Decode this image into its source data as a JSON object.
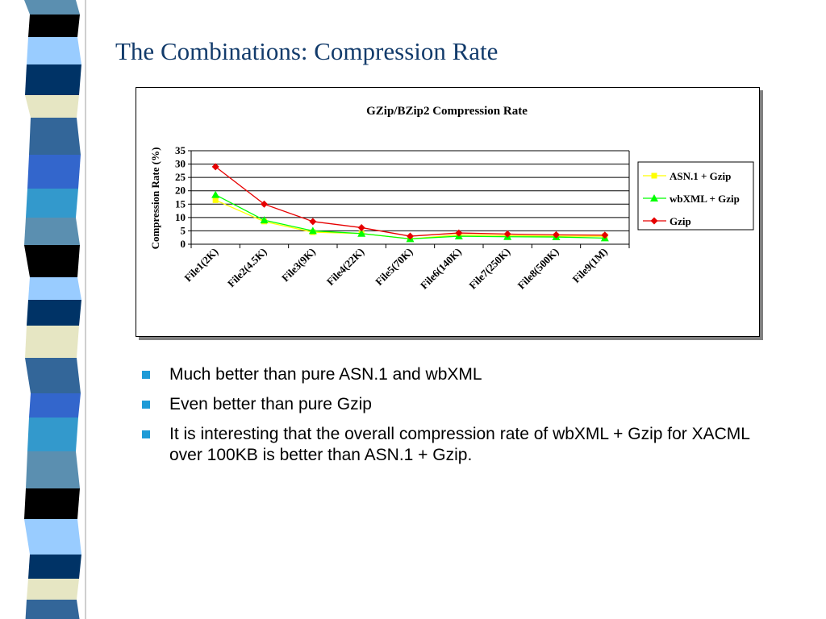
{
  "slide": {
    "title": "The Combinations:  Compression Rate",
    "bullets": [
      "Much better than pure ASN.1 and wbXML",
      "Even better than pure Gzip",
      "It is interesting that the overall compression rate of wbXML + Gzip for XACML over 100KB is better than ASN.1 + Gzip."
    ],
    "bullet_color": "#1e9bd7",
    "stripe_colors": [
      "#5b8fb0",
      "#003366",
      "#3366cc",
      "#000000",
      "#e6e6c3",
      "#3399cc",
      "#99ccff",
      "#336699"
    ]
  },
  "chart_data": {
    "type": "line",
    "title": "GZip/BZip2 Compression Rate",
    "ylabel": "Compression Rate (%)",
    "xlabel": "",
    "categories": [
      "File1(2K)",
      "File2(4.5K)",
      "File3(9K)",
      "File4(22K)",
      "File5(70K)",
      "File6(140K)",
      "File7(250K)",
      "File8(500K)",
      "File9(1M)"
    ],
    "ylim": [
      0,
      35
    ],
    "yticks": [
      0,
      5,
      10,
      15,
      20,
      25,
      30,
      35
    ],
    "grid": true,
    "legend_position": "right",
    "series": [
      {
        "name": "ASN.1 + Gzip",
        "color": "#ffff00",
        "marker": "square",
        "values": [
          16.5,
          8.5,
          4.5,
          4.0,
          2.0,
          3.5,
          3.2,
          3.0,
          3.0
        ]
      },
      {
        "name": "wbXML + Gzip",
        "color": "#00ff00",
        "marker": "triangle",
        "values": [
          18.5,
          9.0,
          5.0,
          4.0,
          2.0,
          3.0,
          2.8,
          2.7,
          2.3
        ]
      },
      {
        "name": "Gzip",
        "color": "#e60000",
        "marker": "diamond",
        "values": [
          29.0,
          15.0,
          8.5,
          6.2,
          3.0,
          4.2,
          3.8,
          3.5,
          3.4
        ]
      }
    ]
  }
}
